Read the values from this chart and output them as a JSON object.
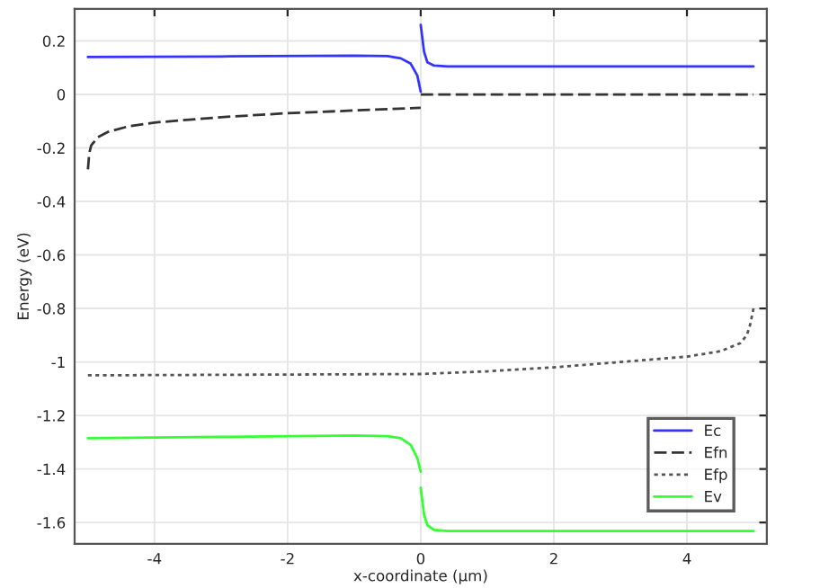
{
  "chart_data": {
    "type": "line",
    "xlabel": "x-coordinate (µm)",
    "ylabel": "Energy (eV)",
    "xlim": [
      -5.2,
      5.2
    ],
    "ylim": [
      -1.68,
      0.32
    ],
    "xticks": [
      -4,
      -2,
      0,
      2,
      4
    ],
    "yticks": [
      0.2,
      0,
      -0.2,
      -0.4,
      -0.6,
      -0.8,
      -1,
      -1.2,
      -1.4,
      -1.6
    ],
    "grid": true,
    "legend": "bottom right",
    "marker": "none",
    "series": [
      {
        "name": "Ec",
        "color": "#3333ff",
        "line_style": "solid",
        "x": [
          -5,
          -3,
          -1,
          -0.5,
          -0.3,
          -0.15,
          -0.05,
          0,
          null,
          0,
          0.05,
          0.1,
          0.2,
          0.4,
          1,
          3,
          5
        ],
        "values": [
          0.14,
          0.142,
          0.145,
          0.143,
          0.135,
          0.115,
          0.07,
          0.01,
          null,
          0.26,
          0.16,
          0.12,
          0.108,
          0.105,
          0.105,
          0.105,
          0.105
        ]
      },
      {
        "name": "Efn",
        "color": "#333333",
        "line_style": "dashed",
        "x": [
          -5,
          -4.98,
          -4.95,
          -4.85,
          -4.7,
          -4.4,
          -4,
          -3,
          -2,
          -1,
          0,
          null,
          0,
          1,
          3,
          5
        ],
        "values": [
          -0.28,
          -0.22,
          -0.19,
          -0.16,
          -0.14,
          -0.12,
          -0.105,
          -0.085,
          -0.07,
          -0.06,
          -0.05,
          null,
          0,
          0,
          0,
          0
        ]
      },
      {
        "name": "Efp",
        "color": "#555555",
        "line_style": "dotted",
        "x": [
          -5,
          -3,
          -1,
          0,
          1,
          2,
          3,
          4,
          4.5,
          4.8,
          4.9,
          4.95,
          5
        ],
        "values": [
          -1.05,
          -1.048,
          -1.046,
          -1.045,
          -1.035,
          -1.02,
          -1.0,
          -0.98,
          -0.96,
          -0.93,
          -0.9,
          -0.86,
          -0.8
        ]
      },
      {
        "name": "Ev",
        "color": "#33ff33",
        "line_style": "solid",
        "x": [
          -5,
          -3,
          -1,
          -0.5,
          -0.3,
          -0.15,
          -0.05,
          0,
          null,
          0,
          0.05,
          0.1,
          0.2,
          0.4,
          1,
          3,
          5
        ],
        "values": [
          -1.285,
          -1.28,
          -1.275,
          -1.277,
          -1.285,
          -1.31,
          -1.36,
          -1.41,
          null,
          -1.47,
          -1.57,
          -1.61,
          -1.628,
          -1.632,
          -1.632,
          -1.632,
          -1.632
        ]
      }
    ]
  }
}
